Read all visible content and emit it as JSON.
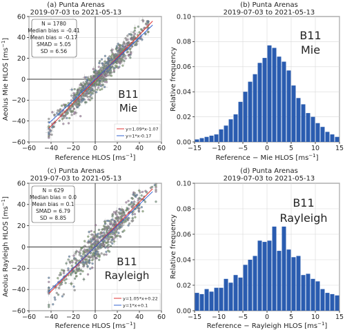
{
  "chart_data": [
    {
      "type": "scatter",
      "panel_title": "(a) Punta Arenas",
      "date_range": "2019-07-03 to 2021-05-13",
      "xlabel": "Reference HLOS [ms$^{-1}$]",
      "xlabel_main": "Reference HLOS [ms",
      "ylabel_main": "Aeolus Mie HLOS [ms",
      "unit_sup": "−1",
      "unit_close": "]",
      "xlim": [
        -60,
        60
      ],
      "ylim": [
        -60,
        60
      ],
      "xticks": [
        "−60",
        "−40",
        "−20",
        "0",
        "20",
        "40",
        "60"
      ],
      "yticks": [
        "−60",
        "−40",
        "−20",
        "0",
        "20",
        "40",
        "60"
      ],
      "stats": [
        "N = 1780",
        "Median bias = -0.41",
        "Mean bias = -0.17",
        "SMAD = 5.05",
        "SD = 6.56"
      ],
      "big_label_1": "B11",
      "big_label_2": "Mie",
      "fit_lines": [
        {
          "label": "y=1.09*x-1.07",
          "slope": 1.09,
          "intercept": -1.07,
          "color": "#e03030"
        },
        {
          "label": "y=1*x-0.17",
          "slope": 1.0,
          "intercept": -0.17,
          "color": "#3060d0"
        }
      ],
      "point_count_approx": 1780,
      "x_range_of_points": [
        -42,
        48
      ],
      "scatter_spread_sd": 6.56
    },
    {
      "type": "bar",
      "panel_title": "(b) Punta Arenas",
      "date_range": "2019-07-03 to 2021-05-13",
      "xlabel_main": "Reference − Mie HLOS [ms",
      "ylabel_main": "Relative frequency",
      "unit_sup": "−1",
      "unit_close": "]",
      "xlim": [
        -15,
        15
      ],
      "ylim": [
        0,
        0.1
      ],
      "xticks": [
        "−15",
        "−10",
        "−5",
        "0",
        "5",
        "10",
        "15"
      ],
      "yticks": [
        "0.00",
        "0.02",
        "0.04",
        "0.06",
        "0.08",
        "0.10"
      ],
      "big_label_1": "B11",
      "big_label_2": "Mie",
      "bin_width": 1,
      "bin_starts": [
        -15,
        -14,
        -13,
        -12,
        -11,
        -10,
        -9,
        -8,
        -7,
        -6,
        -5,
        -4,
        -3,
        -2,
        -1,
        0,
        1,
        2,
        3,
        4,
        5,
        6,
        7,
        8,
        9,
        10,
        11,
        12,
        13,
        14
      ],
      "values": [
        0.002,
        0.003,
        0.004,
        0.005,
        0.006,
        0.01,
        0.013,
        0.018,
        0.022,
        0.032,
        0.04,
        0.048,
        0.054,
        0.063,
        0.067,
        0.077,
        0.075,
        0.068,
        0.064,
        0.057,
        0.045,
        0.035,
        0.03,
        0.023,
        0.02,
        0.015,
        0.012,
        0.008,
        0.006,
        0.004
      ],
      "bar_color": "#2a5cb0"
    },
    {
      "type": "scatter",
      "panel_title": "(c) Punta Arenas",
      "date_range": "2019-07-03 to 2021-05-13",
      "xlabel_main": "Reference HLOS [ms",
      "ylabel_main": "Aeolus Rayleigh HLOS [ms",
      "unit_sup": "−1",
      "unit_close": "]",
      "xlim": [
        -60,
        60
      ],
      "ylim": [
        -60,
        60
      ],
      "xticks": [
        "−60",
        "−40",
        "−20",
        "0",
        "20",
        "40",
        "60"
      ],
      "yticks": [
        "−60",
        "−40",
        "−20",
        "0",
        "20",
        "40",
        "60"
      ],
      "stats": [
        "N = 629",
        "Median bias = 0.0",
        "Mean bias = 0.1",
        "SMAD = 6.79",
        "SD = 8.85"
      ],
      "big_label_1": "B11",
      "big_label_2": "Rayleigh",
      "fit_lines": [
        {
          "label": "y=1.05*x+0.22",
          "slope": 1.05,
          "intercept": 0.22,
          "color": "#e03030"
        },
        {
          "label": "y=1*x+0.1",
          "slope": 1.0,
          "intercept": 0.1,
          "color": "#3060d0"
        }
      ],
      "point_count_approx": 629,
      "x_range_of_points": [
        -42,
        55
      ],
      "scatter_spread_sd": 8.85
    },
    {
      "type": "bar",
      "panel_title": "(d) Punta Arenas",
      "date_range": "2019-07-03 to 2021-05-13",
      "xlabel_main": "Reference − Rayleigh HLOS [ms",
      "ylabel_main": "Relative frequency",
      "unit_sup": "−1",
      "unit_close": "]",
      "xlim": [
        -15,
        15
      ],
      "ylim": [
        0,
        0.1
      ],
      "xticks": [
        "−15",
        "−10",
        "−5",
        "0",
        "5",
        "10",
        "15"
      ],
      "yticks": [
        "0.00",
        "0.02",
        "0.04",
        "0.06",
        "0.08",
        "0.10"
      ],
      "big_label_1": "B11",
      "big_label_2": "Rayleigh",
      "bin_width": 1,
      "bin_starts": [
        -15,
        -14,
        -13,
        -12,
        -11,
        -10,
        -9,
        -8,
        -7,
        -6,
        -5,
        -4,
        -3,
        -2,
        -1,
        0,
        1,
        2,
        3,
        4,
        5,
        6,
        7,
        8,
        9,
        10,
        11,
        12,
        13,
        14
      ],
      "values": [
        0.014,
        0.013,
        0.017,
        0.015,
        0.018,
        0.018,
        0.025,
        0.022,
        0.028,
        0.026,
        0.036,
        0.04,
        0.043,
        0.055,
        0.054,
        0.055,
        0.066,
        0.047,
        0.066,
        0.048,
        0.042,
        0.043,
        0.028,
        0.029,
        0.025,
        0.023,
        0.017,
        0.014,
        0.013,
        0.012
      ],
      "bar_color": "#2a5cb0"
    }
  ]
}
